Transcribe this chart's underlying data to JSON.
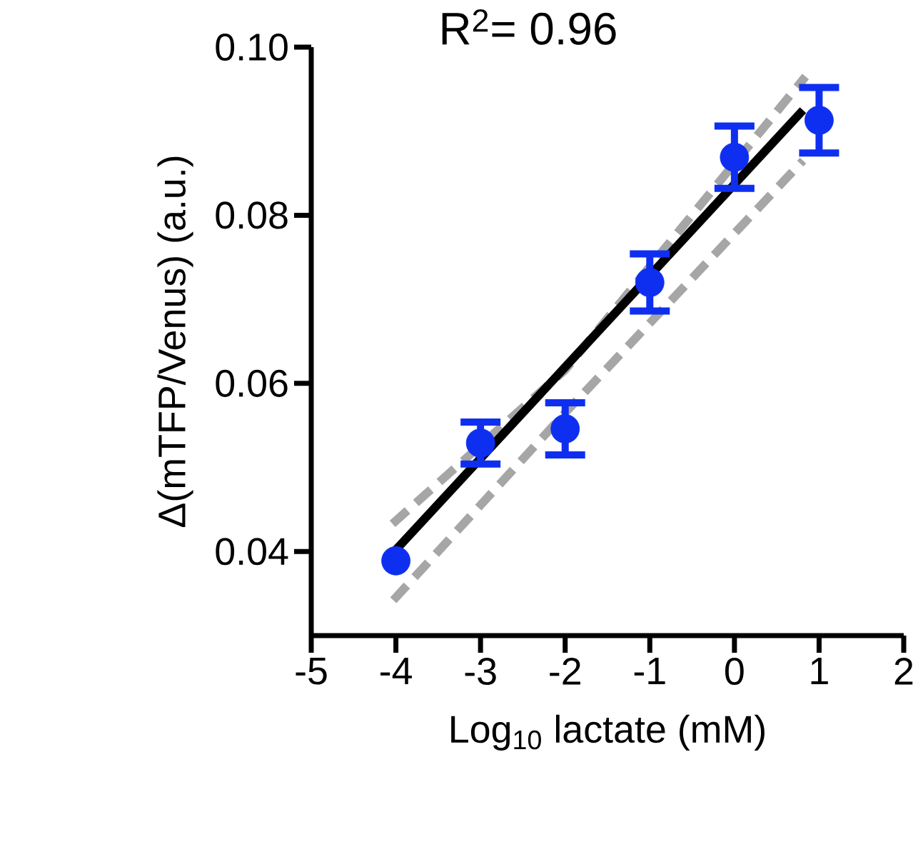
{
  "chart_data": {
    "type": "scatter",
    "xlabel": "Log$_{10}$ lactate (mM)",
    "ylabel": "Δ(mTFP/Venus) (a.u.)",
    "annotations": [
      "R$^{2}$= 0.96"
    ],
    "xlim": [
      -5,
      2
    ],
    "xticks": [
      -5,
      -4,
      -3,
      -2,
      -1,
      0,
      1,
      2
    ],
    "ylim": [
      0.03,
      0.1
    ],
    "yticks": [
      0.04,
      0.06,
      0.08,
      {
        "value": 0.1,
        "label": "0.10"
      }
    ],
    "grid": false,
    "series": [
      {
        "type": "line",
        "color": "#a6a6a6",
        "line_style": "dashed",
        "marker": "none",
        "x": [
          -4.04,
          -2,
          0.84
        ],
        "values": [
          0.0433,
          0.0616,
          0.0965
        ]
      },
      {
        "type": "line",
        "color": "#a6a6a6",
        "line_style": "dashed",
        "marker": "none",
        "x": [
          -4.03,
          -2,
          0.81
        ],
        "values": [
          0.0342,
          0.0565,
          0.0865
        ]
      },
      {
        "type": "line",
        "color": "#000000",
        "line_style": "solid",
        "marker": "none",
        "x": [
          -4,
          0.81
        ],
        "values": [
          0.0402,
          0.0925
        ]
      },
      {
        "color": "#0f2ff0",
        "marker": "circle",
        "x": [
          -4,
          -3,
          -2,
          -1,
          0,
          1
        ],
        "values": [
          0.0389,
          0.0529,
          0.0546,
          0.072,
          0.0869,
          0.0913
        ],
        "errors": [
          null,
          0.0025,
          0.0031,
          0.0034,
          0.0037,
          0.0039
        ]
      }
    ]
  }
}
